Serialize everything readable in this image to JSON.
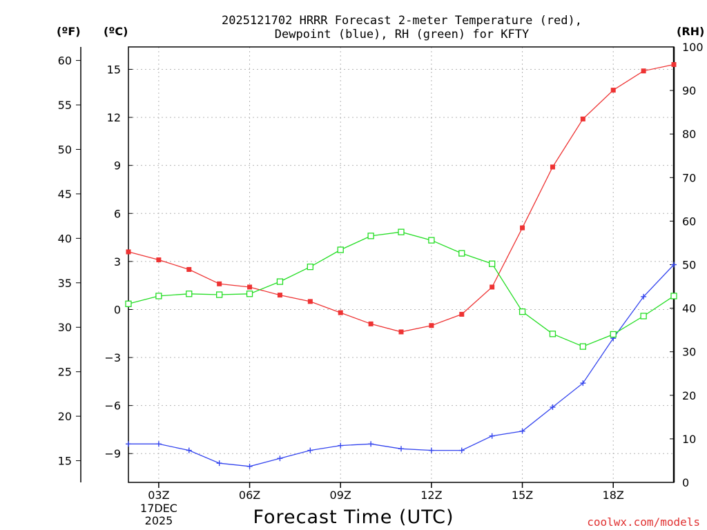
{
  "chart_data": {
    "type": "line",
    "title_line1": "2025121702 HRRR Forecast 2-meter Temperature (red),",
    "title_line2": "Dewpoint (blue), RH (green) for KFTY",
    "xlabel": "Forecast Time (UTC)",
    "date_label_1": "17DEC",
    "date_label_2": "2025",
    "credit": "coolwx.com/models",
    "unit_f": "(ºF)",
    "unit_c": "(ºC)",
    "unit_rh": "(RH)",
    "x_hours": [
      2,
      3,
      4,
      5,
      6,
      7,
      8,
      9,
      10,
      11,
      12,
      13,
      14,
      15,
      16,
      17,
      18,
      19,
      20
    ],
    "xlim": [
      2,
      20
    ],
    "x_ticks": [
      {
        "hour": 3,
        "label": "03Z"
      },
      {
        "hour": 6,
        "label": "06Z"
      },
      {
        "hour": 9,
        "label": "09Z"
      },
      {
        "hour": 12,
        "label": "12Z"
      },
      {
        "hour": 15,
        "label": "15Z"
      },
      {
        "hour": 18,
        "label": "18Z"
      }
    ],
    "ylim_c": [
      -10.8,
      16.4
    ],
    "y_ticks_c": [
      "15",
      "12",
      "9",
      "6",
      "3",
      "0",
      "−3",
      "−6",
      "−9"
    ],
    "y_ticks_c_values": [
      15,
      12,
      9,
      6,
      3,
      0,
      -3,
      -6,
      -9
    ],
    "y_ticks_f": [
      "60",
      "55",
      "50",
      "45",
      "40",
      "35",
      "30",
      "25",
      "20",
      "15"
    ],
    "y_ticks_f_values": [
      60,
      55,
      50,
      45,
      40,
      35,
      30,
      25,
      20,
      15
    ],
    "ylim_rh": [
      0,
      100
    ],
    "y_ticks_rh": [
      "100",
      "90",
      "80",
      "70",
      "60",
      "50",
      "40",
      "30",
      "20",
      "10",
      "0"
    ],
    "y_ticks_rh_values": [
      100,
      90,
      80,
      70,
      60,
      50,
      40,
      30,
      20,
      10,
      0
    ],
    "series": [
      {
        "name": "Temperature",
        "unit": "C",
        "color": "#ee3333",
        "marker": "filled-square",
        "values": [
          3.6,
          3.1,
          2.5,
          1.6,
          1.4,
          0.9,
          0.5,
          -0.2,
          -0.9,
          -1.4,
          -1.0,
          -0.3,
          1.4,
          5.1,
          8.9,
          11.9,
          13.7,
          14.9,
          15.3
        ]
      },
      {
        "name": "Dewpoint",
        "unit": "C",
        "color": "#3344ee",
        "marker": "plus",
        "values": [
          -8.4,
          -8.4,
          -8.8,
          -9.6,
          -9.8,
          -9.3,
          -8.8,
          -8.5,
          -8.4,
          -8.7,
          -8.8,
          -8.8,
          -7.9,
          -7.6,
          -6.1,
          -4.6,
          -1.8,
          0.8,
          2.8
        ]
      },
      {
        "name": "RH",
        "unit": "%",
        "color": "#22dd22",
        "marker": "open-square",
        "values": [
          41,
          42.8,
          43.3,
          43.1,
          43.3,
          46.1,
          49.5,
          53.4,
          56.6,
          57.5,
          55.6,
          52.6,
          50.2,
          39.2,
          34.1,
          31.2,
          34.0,
          38.2,
          42.8
        ]
      }
    ]
  }
}
